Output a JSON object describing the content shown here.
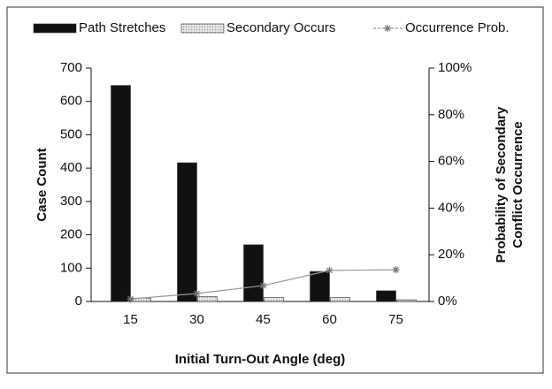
{
  "chart_data": {
    "type": "bar",
    "xlabel": "Initial Turn-Out Angle (deg)",
    "ylabel": "Case Count",
    "y2label": [
      "Probability of Secondary",
      "Conflict Occurrence"
    ],
    "categories": [
      "15",
      "30",
      "45",
      "60",
      "75"
    ],
    "series": [
      {
        "name": "Path Stretches",
        "color": "#111111",
        "values": [
          648,
          416,
          170,
          90,
          32
        ]
      },
      {
        "name": "Secondary Occurs",
        "color": "#d0d0d0",
        "values": [
          10,
          15,
          12,
          12,
          5
        ]
      },
      {
        "name": "Occurrence Prob.",
        "color": "#999999",
        "type": "line",
        "axis": "y2",
        "values": [
          1.1,
          3.4,
          6.8,
          13.3,
          13.6
        ]
      }
    ],
    "ylim": [
      0,
      700
    ],
    "yticks": [
      0,
      100,
      200,
      300,
      400,
      500,
      600,
      700
    ],
    "y2lim": [
      0,
      100
    ],
    "y2ticks": [
      {
        "value": 0,
        "label": "0%"
      },
      {
        "value": 20,
        "label": "20%"
      },
      {
        "value": 40,
        "label": "40%"
      },
      {
        "value": 60,
        "label": "60%"
      },
      {
        "value": 80,
        "label": "80%"
      },
      {
        "value": 100,
        "label": "100%"
      }
    ],
    "legend": "top",
    "grid": false
  }
}
